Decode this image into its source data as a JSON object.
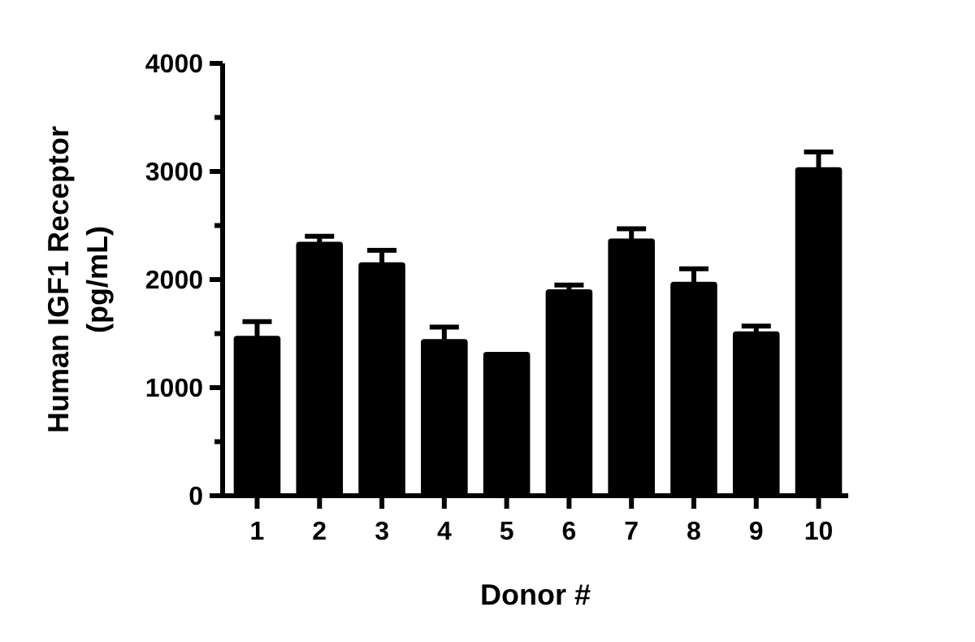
{
  "chart_data": {
    "type": "bar",
    "xlabel": "Donor #",
    "ylabel": "Human IGF1 Receptor (pg/mL)",
    "categories": [
      "1",
      "2",
      "3",
      "4",
      "5",
      "6",
      "7",
      "8",
      "9",
      "10"
    ],
    "values": [
      1480,
      2350,
      2160,
      1450,
      1330,
      1910,
      2380,
      1980,
      1520,
      3040
    ],
    "errors": [
      130,
      50,
      110,
      110,
      null,
      40,
      90,
      120,
      50,
      140
    ],
    "color": "#000000",
    "ylim": [
      0,
      4000
    ],
    "yticks": [
      0,
      {
        "value": 500,
        "label": null
      },
      1000,
      {
        "value": 1500,
        "label": null
      },
      2000,
      {
        "value": 2500,
        "label": null
      },
      3000,
      {
        "value": 3500,
        "label": null
      },
      4000
    ],
    "grid": false
  }
}
